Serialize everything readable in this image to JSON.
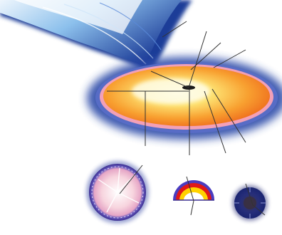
{
  "diagram": {
    "colors": {
      "background": "#ffffff",
      "stream_light": "#eef6fd",
      "stream_mid": "#8cc0ec",
      "stream_dark": "#1d3d98",
      "halo": "#2a4aa8",
      "disk_outer": "#f07020",
      "disk_mid": "#fbb030",
      "disk_core": "#fff9c8",
      "disk_rim": "#f2a0b8",
      "center_object": "#1a1a1a",
      "callout_line": "#333333",
      "sphere_pink": "#f2c4d2",
      "sphere_rim": "#4a3c9a",
      "arc_red": "#e01818",
      "arc_yellow": "#ffd200",
      "arc_blue": "#4a3cc0",
      "dark_ball": "#222a70"
    },
    "parts": [
      {
        "name": "gas-stream"
      },
      {
        "name": "accretion-disk"
      },
      {
        "name": "central-object"
      },
      {
        "name": "inset-sphere"
      },
      {
        "name": "inset-arc"
      },
      {
        "name": "inset-dark-ball"
      }
    ]
  }
}
